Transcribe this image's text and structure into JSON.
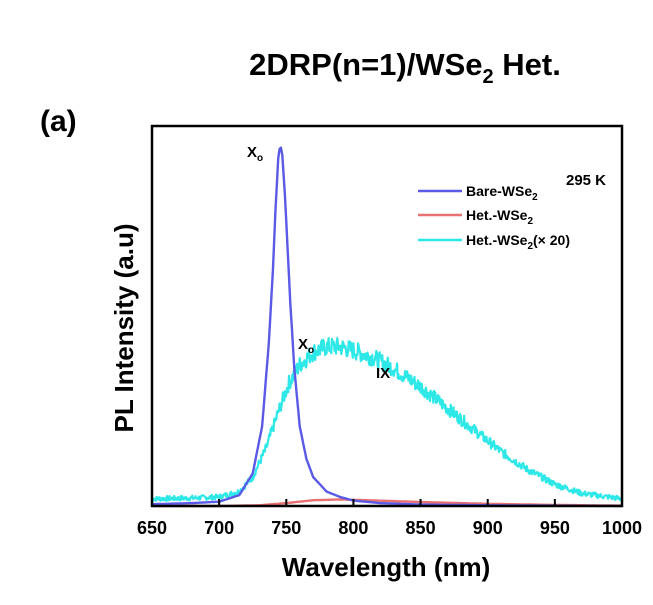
{
  "chart_data": {
    "type": "line",
    "title": "2DRP(n=1)/WSe",
    "title_sub": "2",
    "title_tail": " Het.",
    "panel_label": "(a)",
    "xlabel": "Wavelength (nm)",
    "ylabel": "PL Intensity (a.u)",
    "xlim": [
      650,
      1000
    ],
    "ylim": [
      0,
      1.05
    ],
    "x_ticks": [
      650,
      700,
      750,
      800,
      850,
      900,
      950,
      1000
    ],
    "x_tick_labels": [
      "650",
      "700",
      "750",
      "800",
      "850",
      "900",
      "950",
      "1000"
    ],
    "y_ticks": [],
    "grid": false,
    "temperature_label": "295 K",
    "annotations": [
      {
        "base": "X",
        "sub": "o",
        "x": 745,
        "y": 1.0
      },
      {
        "base": "X",
        "sub": "o",
        "x": 763,
        "y": 0.49
      },
      {
        "text": "IX",
        "x": 822,
        "y": 0.4
      }
    ],
    "legend": {
      "position": "top-right"
    },
    "series": [
      {
        "name": "Bare-WSe",
        "name_sub": "2",
        "name_tail": "",
        "color": "#5a5ae6",
        "x": [
          650,
          680,
          700,
          715,
          725,
          732,
          737,
          740,
          742,
          744,
          745.5,
          747,
          749,
          751,
          753,
          756,
          760,
          765,
          770,
          780,
          790,
          800,
          820,
          850,
          900,
          1000
        ],
        "y": [
          0.005,
          0.008,
          0.012,
          0.03,
          0.09,
          0.22,
          0.45,
          0.65,
          0.82,
          0.96,
          1.0,
          0.97,
          0.86,
          0.71,
          0.56,
          0.38,
          0.22,
          0.13,
          0.08,
          0.04,
          0.025,
          0.015,
          0.008,
          0.004,
          0.002,
          0.0
        ]
      },
      {
        "name": "Het.-WSe",
        "name_sub": "2",
        "name_tail": "",
        "color": "#e87070",
        "x": [
          650,
          700,
          730,
          750,
          770,
          790,
          810,
          850,
          900,
          950,
          1000
        ],
        "y": [
          0.0,
          0.0,
          0.002,
          0.008,
          0.016,
          0.018,
          0.016,
          0.011,
          0.006,
          0.003,
          0.001
        ]
      },
      {
        "name": "Het.-WSe",
        "name_sub": "2",
        "name_tail": "(× 20)",
        "color": "#2ee8e8",
        "x": [
          650,
          680,
          700,
          715,
          725,
          735,
          745,
          752,
          760,
          770,
          780,
          790,
          800,
          815,
          830,
          850,
          870,
          890,
          910,
          930,
          950,
          970,
          990,
          1000
        ],
        "y": [
          0.02,
          0.022,
          0.025,
          0.04,
          0.08,
          0.16,
          0.27,
          0.34,
          0.39,
          0.425,
          0.44,
          0.44,
          0.43,
          0.41,
          0.38,
          0.33,
          0.27,
          0.21,
          0.15,
          0.1,
          0.06,
          0.035,
          0.025,
          0.02
        ]
      }
    ]
  }
}
